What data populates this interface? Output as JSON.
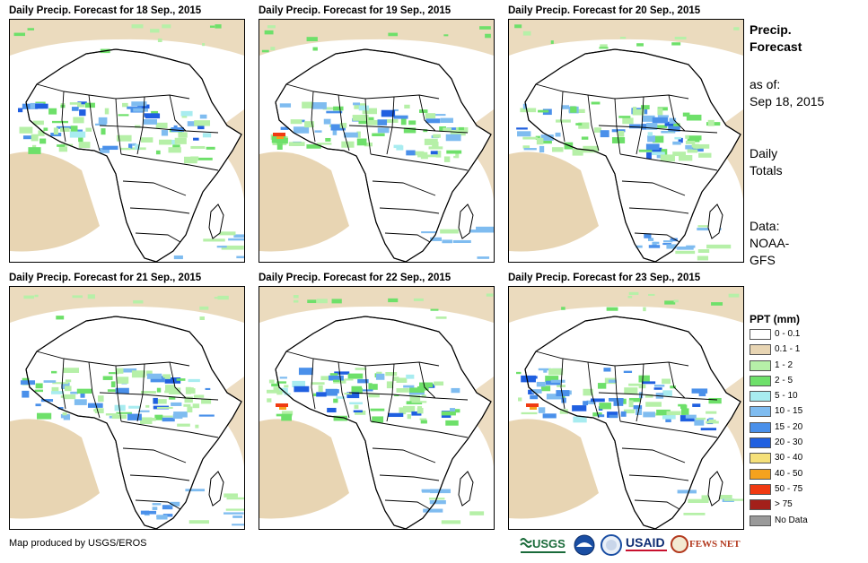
{
  "panels": [
    {
      "title": "Daily Precip. Forecast for 18 Sep., 2015"
    },
    {
      "title": "Daily Precip. Forecast for 19 Sep., 2015"
    },
    {
      "title": "Daily Precip. Forecast for 20 Sep., 2015"
    },
    {
      "title": "Daily Precip. Forecast for 21 Sep., 2015"
    },
    {
      "title": "Daily Precip. Forecast for 22 Sep., 2015"
    },
    {
      "title": "Daily Precip. Forecast for 23 Sep., 2015"
    }
  ],
  "side": {
    "heading_line1": "Precip.",
    "heading_line2": "Forecast",
    "asof_label": "as of:",
    "asof_date": "Sep 18, 2015",
    "totals_line1": "Daily",
    "totals_line2": "Totals",
    "data_line1": "Data:",
    "data_line2": "NOAA-",
    "data_line3": "GFS"
  },
  "legend": {
    "title": "PPT (mm)",
    "items": [
      {
        "label": "0 - 0.1",
        "color": "#ffffff"
      },
      {
        "label": "0.1 - 1",
        "color": "#e8d5b3"
      },
      {
        "label": "1 - 2",
        "color": "#b6f0a8"
      },
      {
        "label": "2 - 5",
        "color": "#6ee06a"
      },
      {
        "label": "5 - 10",
        "color": "#a8ecf0"
      },
      {
        "label": "10 - 15",
        "color": "#7fbcf0"
      },
      {
        "label": "15 - 20",
        "color": "#4a90ea"
      },
      {
        "label": "20 - 30",
        "color": "#1f5fe0"
      },
      {
        "label": "30 - 40",
        "color": "#f5e079"
      },
      {
        "label": "40 - 50",
        "color": "#f5a21e"
      },
      {
        "label": "50 - 75",
        "color": "#f03a12"
      },
      {
        "label": "> 75",
        "color": "#a3201a"
      },
      {
        "label": "No Data",
        "color": "#9a9a9a"
      }
    ]
  },
  "footer": {
    "credit": "Map produced by USGS/EROS",
    "logo_usgs": "USGS",
    "logo_noaa": "NOAA",
    "logo_usaid": "USAID",
    "logo_fews": "FEWS NET"
  }
}
